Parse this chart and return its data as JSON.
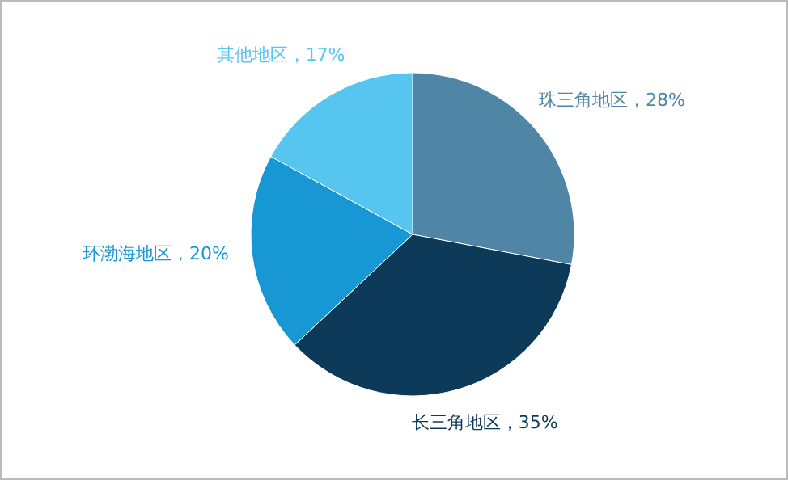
{
  "chart_data": {
    "type": "pie",
    "categories": [
      "珠三角地区",
      "长三角地区",
      "环渤海地区",
      "其他地区"
    ],
    "values": [
      28,
      35,
      20,
      17
    ],
    "value_labels": [
      "28%",
      "35%",
      "20%",
      "17%"
    ],
    "colors": [
      "#4f86a6",
      "#0d3a58",
      "#1797d4",
      "#56c5ef"
    ]
  }
}
